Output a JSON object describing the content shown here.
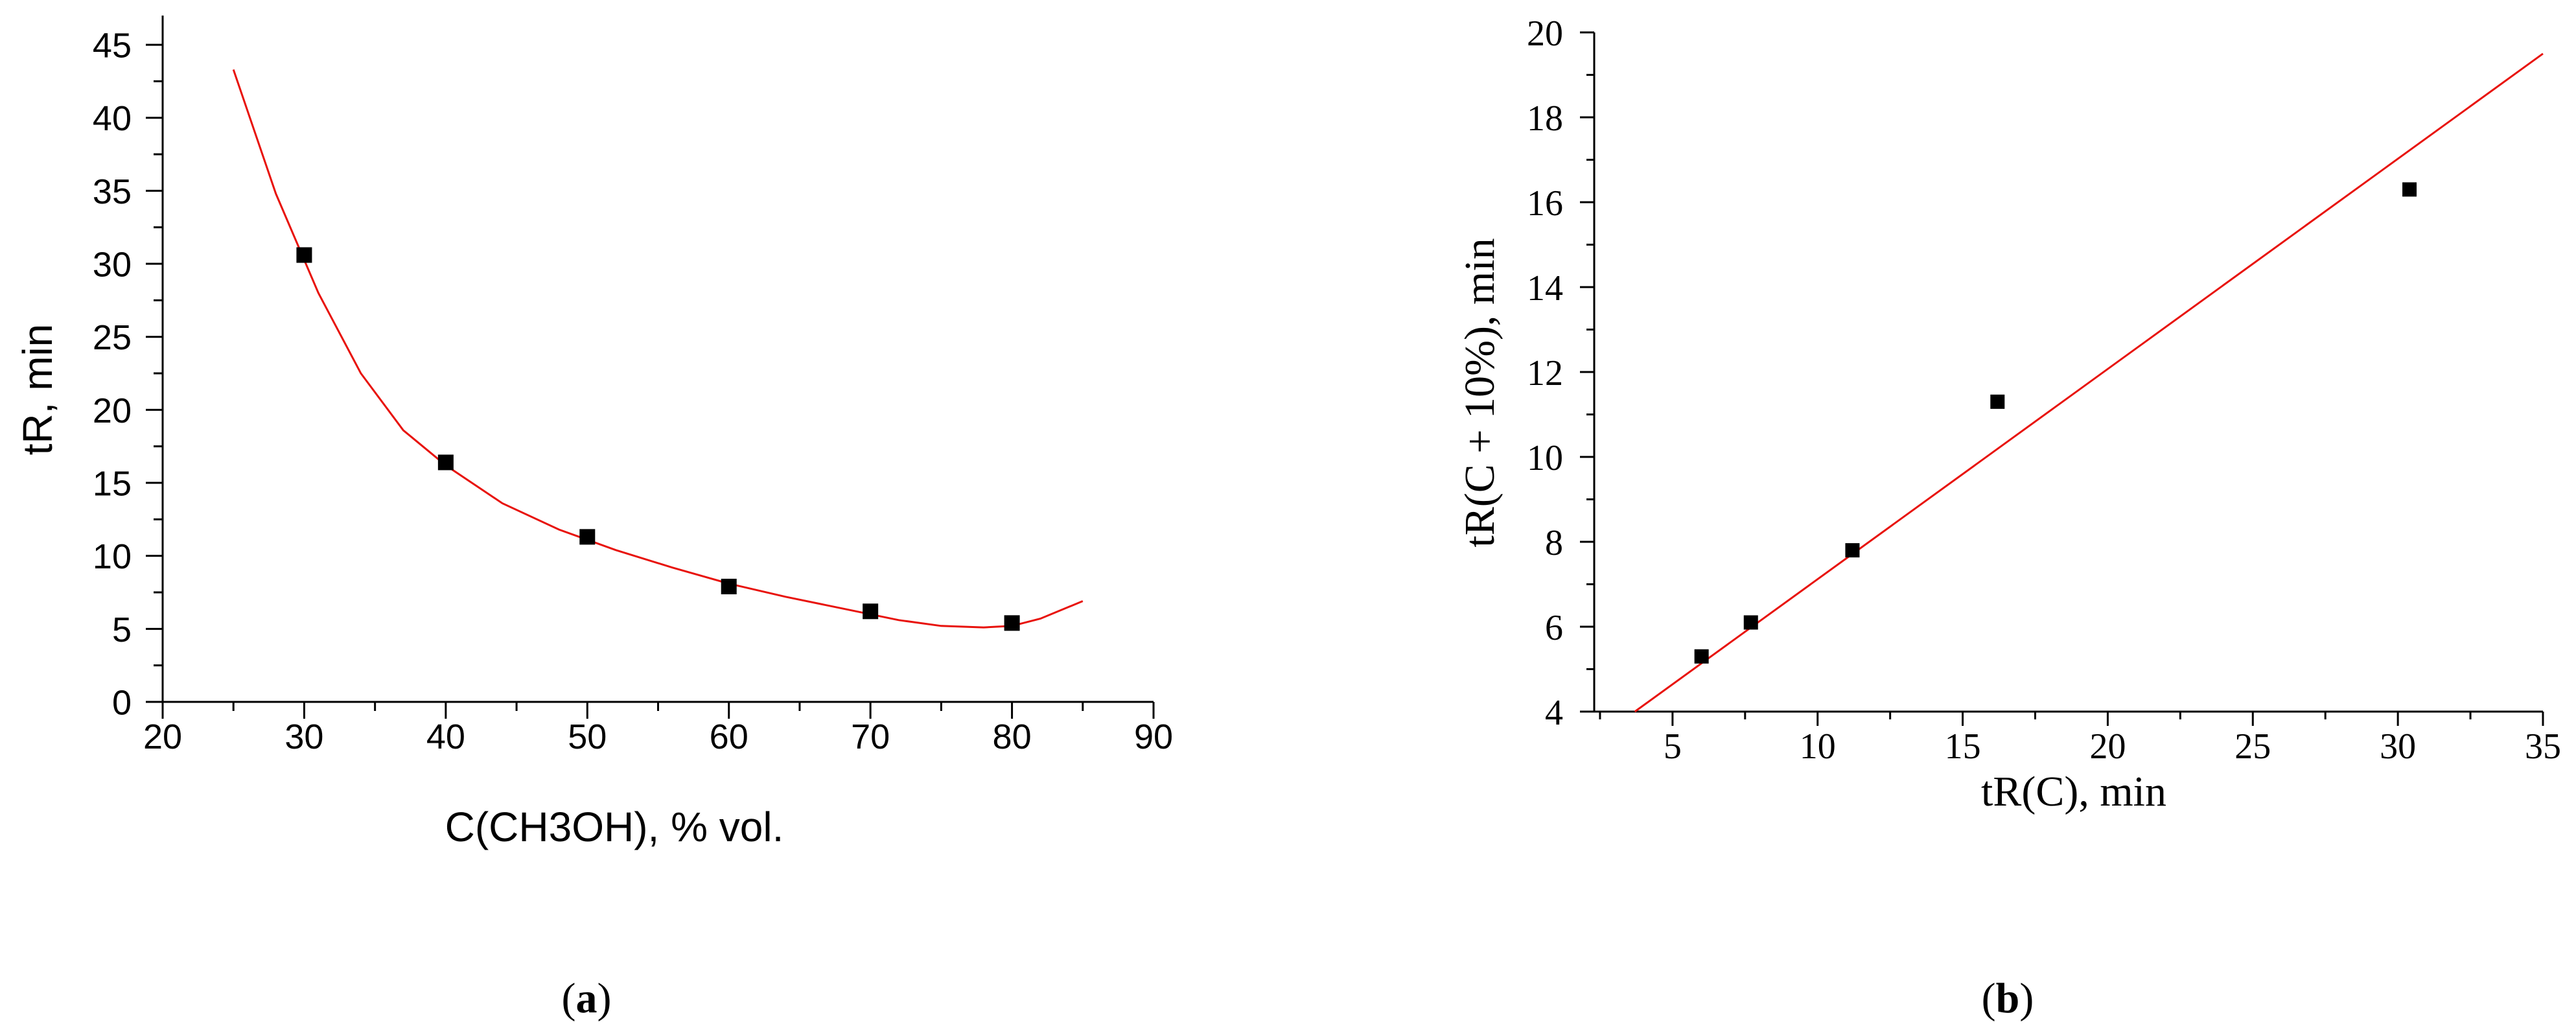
{
  "colors": {
    "fit": "#e8120c",
    "points": "#000000",
    "axis": "#000000"
  },
  "chart_data": [
    {
      "id": "a",
      "type": "scatter",
      "panel_label": {
        "open": "(",
        "letter": "a",
        "close": ")"
      },
      "xlabel": "C(CH3OH), % vol.",
      "ylabel": "tR, min",
      "xlim": [
        20,
        90
      ],
      "ylim": [
        0,
        47
      ],
      "xticks": [
        20,
        30,
        40,
        50,
        60,
        70,
        80,
        90
      ],
      "yticks": [
        0,
        5,
        10,
        15,
        20,
        25,
        30,
        35,
        40,
        45
      ],
      "x_minor": 5,
      "y_minor": 2.5,
      "series": [
        {
          "kind": "points",
          "x": [
            30,
            40,
            50,
            60,
            70,
            80
          ],
          "y": [
            30.6,
            16.4,
            11.3,
            7.9,
            6.2,
            5.4
          ]
        },
        {
          "kind": "fit",
          "x": [
            25,
            28,
            31,
            34,
            37,
            40,
            44,
            48,
            52,
            56,
            60,
            64,
            68,
            72,
            75,
            78,
            80,
            82,
            85
          ],
          "y": [
            43.3,
            34.8,
            28.0,
            22.5,
            18.6,
            16.2,
            13.6,
            11.8,
            10.4,
            9.2,
            8.1,
            7.2,
            6.4,
            5.6,
            5.2,
            5.1,
            5.2,
            5.7,
            6.9
          ]
        }
      ],
      "grid": false,
      "legend": "none"
    },
    {
      "id": "b",
      "type": "scatter",
      "panel_label": {
        "open": "(",
        "letter": "b",
        "close": ")"
      },
      "xlabel": "tR(C), min",
      "ylabel": "tR(C + 10%), min",
      "xlim": [
        2.3,
        35
      ],
      "ylim": [
        4,
        20
      ],
      "xticks": [
        5,
        10,
        15,
        20,
        25,
        30,
        35
      ],
      "yticks": [
        4,
        6,
        8,
        10,
        12,
        14,
        16,
        18,
        20
      ],
      "x_minor": 2.5,
      "y_minor": 1,
      "series": [
        {
          "kind": "points",
          "x": [
            6.0,
            7.7,
            11.2,
            16.2,
            30.4
          ],
          "y": [
            5.3,
            6.1,
            7.8,
            11.3,
            16.3
          ]
        },
        {
          "kind": "fit",
          "x": [
            3.7,
            35
          ],
          "y": [
            4.0,
            19.5
          ]
        }
      ],
      "grid": false,
      "legend": "none"
    }
  ]
}
